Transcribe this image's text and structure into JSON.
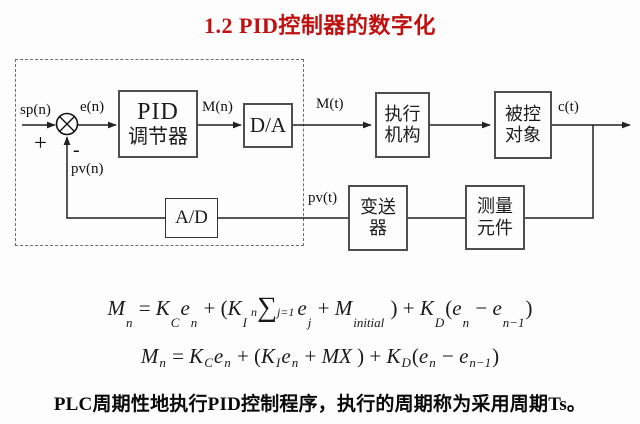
{
  "title": "1.2 PID控制器的数字化",
  "colors": {
    "title_red": "#c11010",
    "line_color": "#222222",
    "block_border": "#4f4f4f"
  },
  "diagram": {
    "labels": {
      "setpoint": "sp(n)",
      "error": "e(n)",
      "plus": "+",
      "minus": "-",
      "pv_digital": "pv(n)",
      "m_digital": "M(n)",
      "m_analog": "M(t)",
      "output": "c(t)",
      "pv_analog": "pv(t)"
    },
    "blocks": {
      "pid": {
        "line1": "PID",
        "line2": "调节器"
      },
      "da": {
        "label": "D/A"
      },
      "actuator": {
        "line1": "执行",
        "line2": "机构"
      },
      "plant": {
        "line1": "被控",
        "line2": "对象"
      },
      "sensor": {
        "line1": "测量",
        "line2": "元件"
      },
      "transmitter": {
        "line1": "变送",
        "line2": "器"
      },
      "ad": {
        "label": "A/D"
      }
    }
  },
  "formulas": [
    {
      "tokens": [
        {
          "v": "M"
        },
        {
          "b": "n"
        },
        {
          "o": " = "
        },
        {
          "v": "K"
        },
        {
          "b": "C"
        },
        {
          "v": "e"
        },
        {
          "b": "n"
        },
        {
          "o": " + ("
        },
        {
          "v": "K"
        },
        {
          "b": "I"
        },
        {
          "sum": {
            "top": "n",
            "bot": "j=1",
            "sigma": "∑"
          }
        },
        {
          "v": "e"
        },
        {
          "b": "j"
        },
        {
          "o": " + "
        },
        {
          "v": "M"
        },
        {
          "b": "initial"
        },
        {
          "o": " ) + "
        },
        {
          "v": "K"
        },
        {
          "b": "D"
        },
        {
          "o": "("
        },
        {
          "v": "e"
        },
        {
          "b": "n"
        },
        {
          "o": " − "
        },
        {
          "v": "e"
        },
        {
          "b": "n−1"
        },
        {
          "o": ")"
        }
      ]
    },
    {
      "tokens": [
        {
          "v": "M"
        },
        {
          "b": "n"
        },
        {
          "o": " = "
        },
        {
          "v": "K"
        },
        {
          "b": "C"
        },
        {
          "v": "e"
        },
        {
          "b": "n"
        },
        {
          "o": " + ("
        },
        {
          "v": "K"
        },
        {
          "b": "I"
        },
        {
          "v": "e"
        },
        {
          "b": "n"
        },
        {
          "o": " + "
        },
        {
          "v": "MX"
        },
        {
          "o": " ) + "
        },
        {
          "v": "K"
        },
        {
          "b": "D"
        },
        {
          "o": "("
        },
        {
          "v": "e"
        },
        {
          "b": "n"
        },
        {
          "o": " − "
        },
        {
          "v": "e"
        },
        {
          "b": "n−1"
        },
        {
          "o": ")"
        }
      ]
    }
  ],
  "footer": "PLC周期性地执行PID控制程序，执行的周期称为采用周期Ts。"
}
